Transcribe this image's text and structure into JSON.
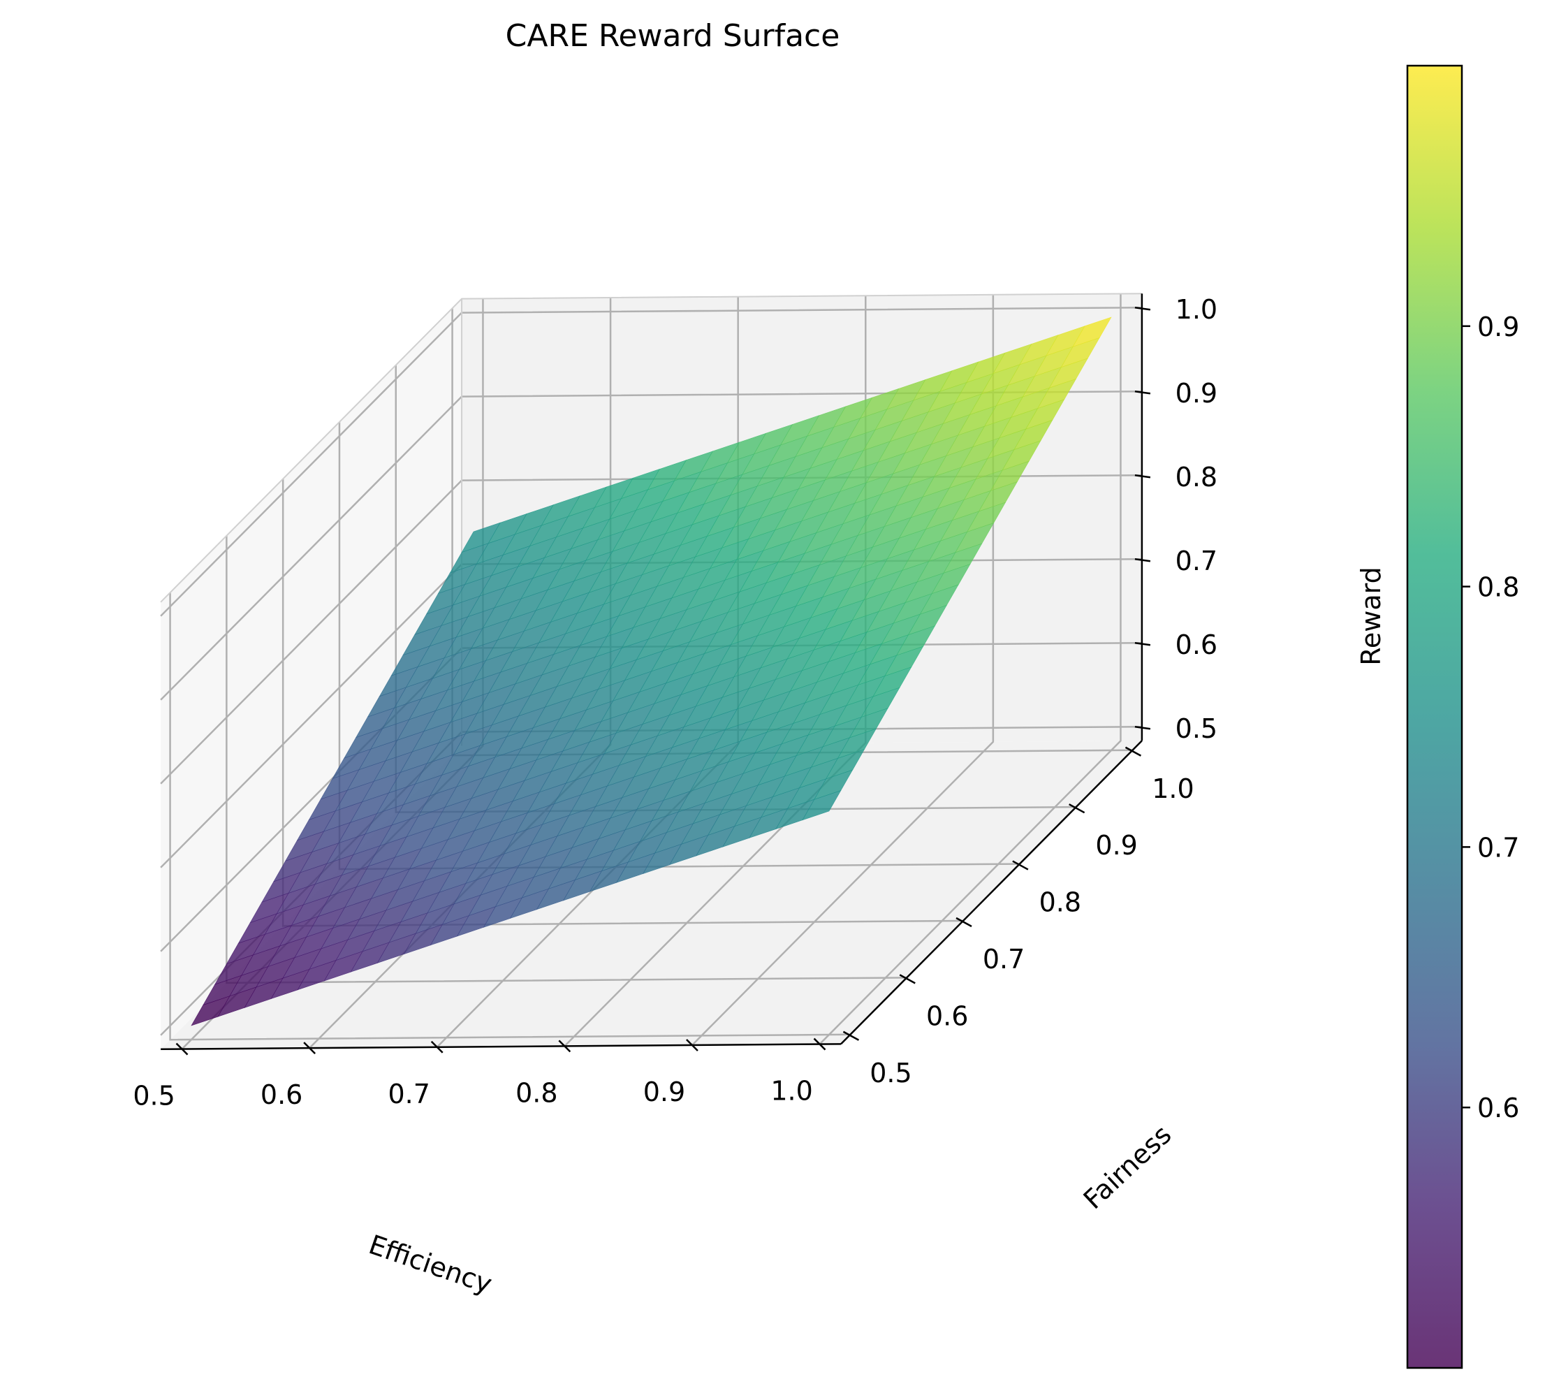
{
  "chart_data": {
    "type": "surface",
    "title": "CARE Reward Surface",
    "xlabel": "Efficiency",
    "ylabel": "Fairness",
    "zlabel": "Reward",
    "xlim": [
      0.5,
      1.0
    ],
    "ylim": [
      0.5,
      1.0
    ],
    "zlim": [
      0.5,
      1.0
    ],
    "x_ticks": [
      "0.5",
      "0.6",
      "0.7",
      "0.8",
      "0.9",
      "1.0"
    ],
    "y_ticks": [
      "0.5",
      "0.6",
      "0.7",
      "0.8",
      "0.9",
      "1.0"
    ],
    "z_ticks": [
      "0.5",
      "0.6",
      "0.7",
      "0.8",
      "0.9",
      "1.0"
    ],
    "surface": {
      "formula": "Reward = 0.5*Efficiency + 0.5*Fairness",
      "x_range": [
        0.5,
        1.0
      ],
      "y_range": [
        0.5,
        1.0
      ],
      "grid_points": 25,
      "corners": [
        {
          "x": 0.5,
          "y": 0.5,
          "z": 0.5
        },
        {
          "x": 1.0,
          "y": 0.5,
          "z": 0.75
        },
        {
          "x": 0.5,
          "y": 1.0,
          "z": 0.75
        },
        {
          "x": 1.0,
          "y": 1.0,
          "z": 1.0
        }
      ]
    },
    "colormap": "viridis",
    "alpha": 0.8,
    "colorbar": {
      "range": [
        0.5,
        1.0
      ],
      "ticks": [
        "0.6",
        "0.7",
        "0.8",
        "0.9"
      ]
    },
    "grid": true
  }
}
